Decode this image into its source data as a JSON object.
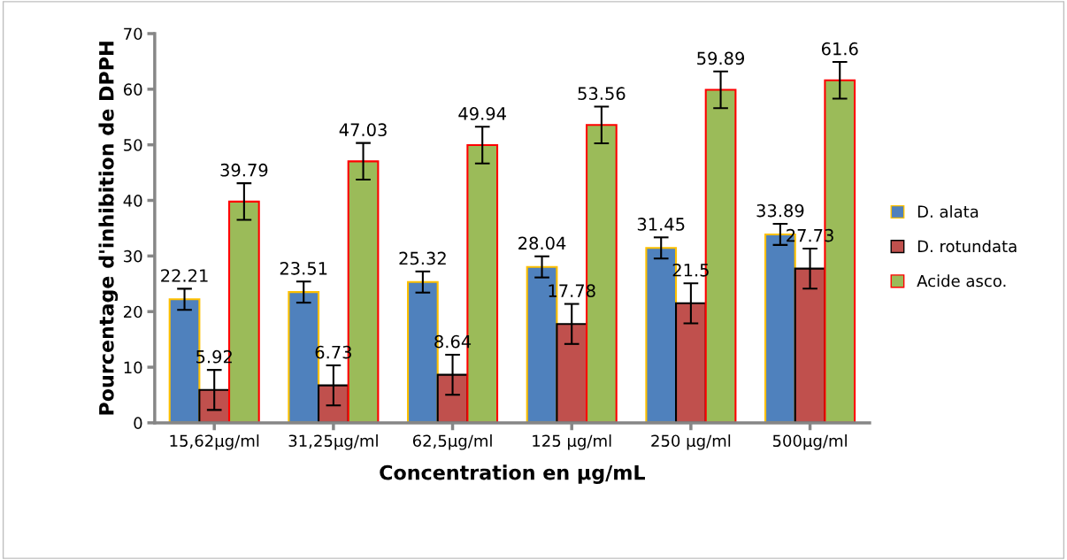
{
  "chart_data": {
    "type": "bar",
    "xlabel": "Concentration en µg/mL",
    "ylabel": "Pourcentage d'inhibition de DPPH",
    "categories": [
      "15,62µg/ml",
      "31,25µg/ml",
      "62,5µg/ml",
      "125 µg/ml",
      "250 µg/ml",
      "500µg/ml"
    ],
    "series": [
      {
        "name": "D. alata",
        "color": "#4f81bd",
        "values": [
          22.21,
          23.51,
          25.32,
          28.04,
          31.45,
          33.89
        ],
        "errors": [
          1.9,
          1.9,
          1.9,
          1.9,
          1.9,
          1.9
        ]
      },
      {
        "name": "D. rotundata",
        "color": "#c0504d",
        "values": [
          5.92,
          6.73,
          8.64,
          17.78,
          21.5,
          27.73
        ],
        "errors": [
          3.6,
          3.6,
          3.6,
          3.6,
          3.6,
          3.6
        ]
      },
      {
        "name": "Acide asco.",
        "color": "#9bbb59",
        "values": [
          39.79,
          47.03,
          49.94,
          53.56,
          59.89,
          61.6
        ],
        "errors": [
          3.3,
          3.3,
          3.3,
          3.3,
          3.3,
          3.3
        ]
      }
    ],
    "ylim": [
      0,
      70
    ],
    "yticks": [
      0,
      10,
      20,
      30,
      40,
      50,
      60,
      70
    ],
    "grid": false,
    "legend": "right",
    "data_labels": true
  }
}
